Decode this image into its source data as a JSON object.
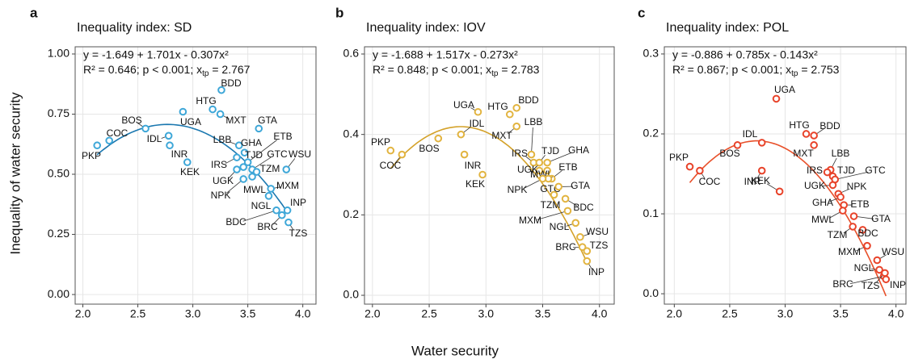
{
  "chart_data": [
    {
      "type": "scatter",
      "panel_label": "a",
      "title": "Inequality index: SD",
      "annotation": {
        "equation": "y = -1.649 + 1.701x - 0.307x²",
        "stats": [
          "R² = 0.646; p < 0.001; x",
          "tp",
          " = 2.767"
        ]
      },
      "fit": {
        "coefficients": [
          -1.649,
          1.701,
          -0.307
        ]
      },
      "labels": [
        "PKP",
        "COC",
        "BOS",
        "IDL",
        "INR",
        "KEK",
        "UGA",
        "HTG",
        "MXT",
        "BDD",
        "GTA",
        "LBB",
        "GHA",
        "IRS",
        "TJD",
        "UGK",
        "GTC",
        "WSU",
        "TZM",
        "NPK",
        "MXM",
        "MWL",
        "NGL",
        "INP",
        "BDC",
        "BRC",
        "TZS",
        "ETB"
      ],
      "x": [
        2.13,
        2.24,
        2.57,
        2.78,
        2.79,
        2.95,
        2.91,
        3.18,
        3.25,
        3.26,
        3.6,
        3.42,
        3.47,
        3.4,
        3.46,
        3.4,
        3.54,
        3.85,
        3.58,
        3.46,
        3.71,
        3.54,
        3.69,
        3.86,
        3.76,
        3.81,
        3.87,
        3.5
      ],
      "values": [
        0.62,
        0.64,
        0.69,
        0.66,
        0.62,
        0.55,
        0.76,
        0.77,
        0.75,
        0.85,
        0.69,
        0.62,
        0.59,
        0.57,
        0.53,
        0.52,
        0.52,
        0.52,
        0.51,
        0.48,
        0.44,
        0.49,
        0.41,
        0.35,
        0.35,
        0.33,
        0.3,
        0.55
      ],
      "color": "#3ea7d8",
      "line_color": "#1b78b0",
      "text_color": "#4d7b98",
      "xlim": [
        1.93,
        4.12
      ],
      "ylim": [
        -0.04,
        1.03
      ],
      "xticks": [
        {
          "value": 2,
          "label": "2.0"
        },
        2.5,
        {
          "value": 3,
          "label": "3.0"
        },
        3.5,
        {
          "value": 4,
          "label": "4.0"
        }
      ],
      "yticks": [
        {
          "value": 0,
          "label": "0.00"
        },
        0.25,
        {
          "value": 0.5,
          "label": "0.50"
        },
        0.75,
        {
          "value": 1,
          "label": "1.00"
        }
      ]
    },
    {
      "type": "scatter",
      "panel_label": "b",
      "title": "Inequality index: IOV",
      "annotation": {
        "equation": "y = -1.688 + 1.517x - 0.273x²",
        "stats": [
          "R² = 0.848; p < 0.001; x",
          "tp",
          " = 2.783"
        ]
      },
      "fit": {
        "coefficients": [
          -1.688,
          1.517,
          -0.273
        ]
      },
      "labels": [
        "PKP",
        "COC",
        "BOS",
        "UGA",
        "IDL",
        "INR",
        "KEK",
        "HTG",
        "BDD",
        "MXT",
        "LBB",
        "IRS",
        "TJD",
        "GHA",
        "UGK",
        "ETB",
        "MWL",
        "GTC",
        "NPK",
        "GTA",
        "TZM",
        "BDC",
        "MXM",
        "NGL",
        "WSU",
        "BRC",
        "TZS",
        "INP"
      ],
      "x": [
        2.16,
        2.26,
        2.58,
        2.93,
        2.78,
        2.81,
        2.97,
        3.21,
        3.27,
        3.27,
        3.4,
        3.42,
        3.47,
        3.54,
        3.47,
        3.58,
        3.54,
        3.55,
        3.5,
        3.64,
        3.6,
        3.7,
        3.72,
        3.79,
        3.83,
        3.85,
        3.89,
        3.89
      ],
      "values": [
        0.36,
        0.35,
        0.39,
        0.456,
        0.4,
        0.35,
        0.3,
        0.45,
        0.466,
        0.42,
        0.35,
        0.33,
        0.33,
        0.33,
        0.31,
        0.29,
        0.31,
        0.29,
        0.29,
        0.27,
        0.25,
        0.24,
        0.21,
        0.18,
        0.145,
        0.12,
        0.11,
        0.085
      ],
      "color": "#e2b440",
      "line_color": "#d4a22a",
      "text_color": "#9a7a20",
      "xlim": [
        1.93,
        4.13
      ],
      "ylim": [
        -0.022,
        0.618
      ],
      "xticks": [
        {
          "value": 2,
          "label": "2.0"
        },
        2.5,
        {
          "value": 3,
          "label": "3.0"
        },
        3.5,
        {
          "value": 4,
          "label": "4.0"
        }
      ],
      "yticks": [
        {
          "value": 0,
          "label": "0.0"
        },
        0.2,
        0.4,
        0.6
      ]
    },
    {
      "type": "scatter",
      "panel_label": "c",
      "title": "Inequality index: POL",
      "annotation": {
        "equation": "y = -0.886 + 0.785x - 0.143x²",
        "stats": [
          "R² = 0.867; p < 0.001; x",
          "tp",
          " = 2.753"
        ]
      },
      "fit": {
        "coefficients": [
          -0.886,
          0.785,
          -0.143
        ]
      },
      "labels": [
        "PKP",
        "COC",
        "BOS",
        "IDL",
        "INR",
        "KEK",
        "UGA",
        "HTG",
        "BDD",
        "MXT",
        "LBB",
        "IRS",
        "TJD",
        "GTC",
        "UGK",
        "NPK",
        "GHA",
        "ETB",
        "MWL",
        "GTA",
        "TZM",
        "BDC",
        "MXM",
        "WSU",
        "NGL",
        "BRC",
        "TZS",
        "INP"
      ],
      "x": [
        2.14,
        2.23,
        2.57,
        2.79,
        2.79,
        2.95,
        2.92,
        3.19,
        3.26,
        3.26,
        3.41,
        3.38,
        3.43,
        3.45,
        3.43,
        3.48,
        3.5,
        3.53,
        3.52,
        3.62,
        3.61,
        3.7,
        3.74,
        3.83,
        3.85,
        3.89,
        3.9,
        3.91
      ],
      "values": [
        0.159,
        0.154,
        0.186,
        0.189,
        0.154,
        0.128,
        0.244,
        0.2,
        0.198,
        0.186,
        0.155,
        0.152,
        0.147,
        0.143,
        0.136,
        0.125,
        0.121,
        0.111,
        0.104,
        0.097,
        0.084,
        0.08,
        0.06,
        0.042,
        0.03,
        0.022,
        0.026,
        0.018
      ],
      "color": "#e8432a",
      "line_color": "#e8502a",
      "text_color": "#c0392b",
      "xlim": [
        1.91,
        4.09
      ],
      "ylim": [
        -0.013,
        0.309
      ],
      "xticks": [
        {
          "value": 2,
          "label": "2.0"
        },
        2.5,
        {
          "value": 3,
          "label": "3.0"
        },
        3.5,
        {
          "value": 4,
          "label": "4.0"
        }
      ],
      "yticks": [
        {
          "value": 0,
          "label": "0.0"
        },
        0.1,
        0.2,
        0.3
      ]
    }
  ],
  "x_label": "Water security",
  "y_label": "Inequality of water security"
}
